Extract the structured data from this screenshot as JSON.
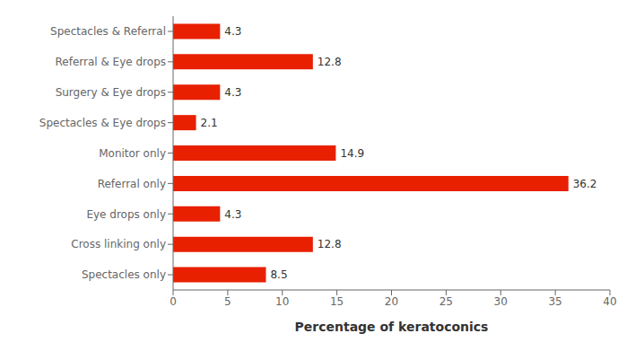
{
  "chart_data": {
    "type": "bar",
    "orientation": "horizontal",
    "categories": [
      "Spectacles only",
      "Cross linking only",
      "Eye drops only",
      "Referral only",
      "Monitor only",
      "Spectacles & Eye drops",
      "Surgery & Eye drops",
      "Referral & Eye drops",
      "Spectacles & Referral"
    ],
    "values": [
      8.5,
      12.8,
      4.3,
      36.2,
      14.9,
      2.1,
      4.3,
      12.8,
      4.3
    ],
    "color": "#E82000",
    "xlabel": "Percentage of keratoconics",
    "xlim": [
      0,
      40
    ],
    "xticks": [
      0,
      5,
      10,
      15,
      20,
      25,
      30,
      35,
      40
    ],
    "data_labels": true,
    "grid": false
  }
}
